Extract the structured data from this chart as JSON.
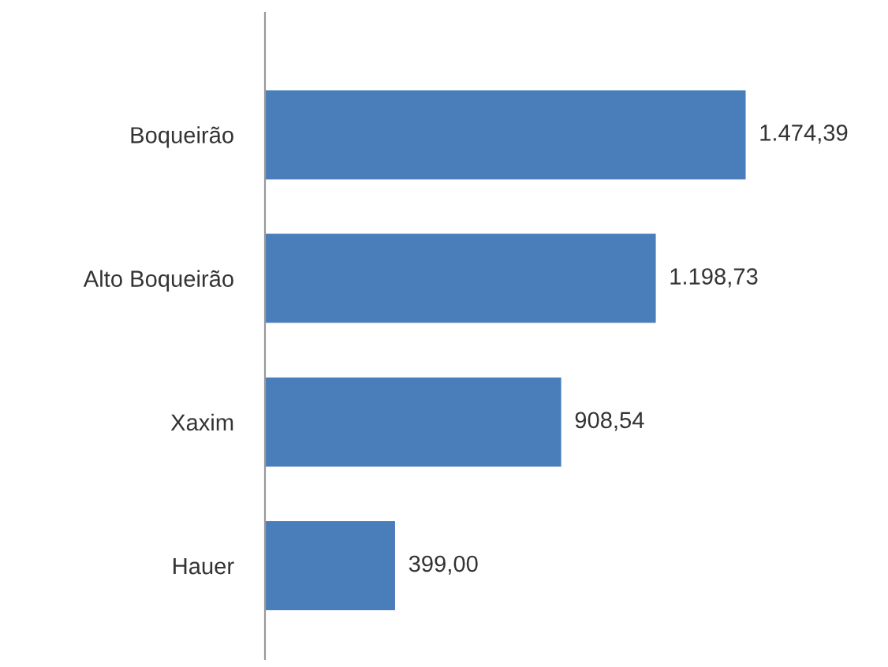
{
  "chart_data": {
    "type": "bar",
    "orientation": "horizontal",
    "categories": [
      "Boqueirão",
      "Alto Boqueirão",
      "Xaxim",
      "Hauer"
    ],
    "values": [
      1474.39,
      1198.73,
      908.54,
      399.0
    ],
    "value_labels": [
      "1.474,39",
      "1.198,73",
      "908,54",
      "399,00"
    ],
    "color": "#4a7ebb",
    "grid": false,
    "legend": false
  }
}
